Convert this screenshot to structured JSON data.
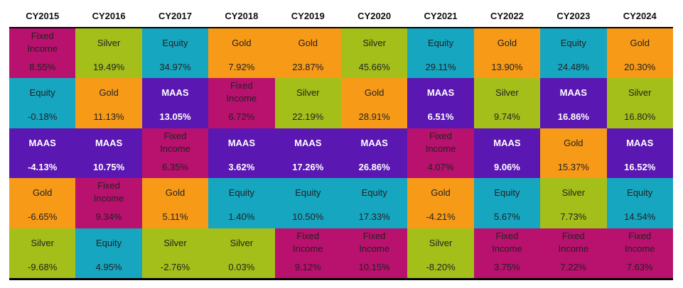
{
  "colors": {
    "Fixed Income": "#B8116E",
    "Silver": "#A5BF1A",
    "Equity": "#17A6C0",
    "Gold": "#F79A18",
    "MAAS": "#5A17B2"
  },
  "chart_data": {
    "type": "table",
    "years": [
      "CY2015",
      "CY2016",
      "CY2017",
      "CY2018",
      "CY2019",
      "CY2020",
      "CY2021",
      "CY2022",
      "CY2023",
      "CY2024"
    ],
    "columns": [
      [
        {
          "asset": "Fixed Income",
          "value": "8.55%"
        },
        {
          "asset": "Equity",
          "value": "-0.18%"
        },
        {
          "asset": "MAAS",
          "value": "-4.13%"
        },
        {
          "asset": "Gold",
          "value": "-6.65%"
        },
        {
          "asset": "Silver",
          "value": "-9.68%"
        }
      ],
      [
        {
          "asset": "Silver",
          "value": "19.49%"
        },
        {
          "asset": "Gold",
          "value": "11.13%"
        },
        {
          "asset": "MAAS",
          "value": "10.75%"
        },
        {
          "asset": "Fixed Income",
          "value": "9.34%"
        },
        {
          "asset": "Equity",
          "value": "4.95%"
        }
      ],
      [
        {
          "asset": "Equity",
          "value": "34.97%"
        },
        {
          "asset": "MAAS",
          "value": "13.05%"
        },
        {
          "asset": "Fixed Income",
          "value": "6.35%"
        },
        {
          "asset": "Gold",
          "value": "5.11%"
        },
        {
          "asset": "Silver",
          "value": "-2.76%"
        }
      ],
      [
        {
          "asset": "Gold",
          "value": "7.92%"
        },
        {
          "asset": "Fixed Income",
          "value": "6.72%"
        },
        {
          "asset": "MAAS",
          "value": "3.62%"
        },
        {
          "asset": "Equity",
          "value": "1.40%"
        },
        {
          "asset": "Silver",
          "value": "0.03%"
        }
      ],
      [
        {
          "asset": "Gold",
          "value": "23.87%"
        },
        {
          "asset": "Silver",
          "value": "22.19%"
        },
        {
          "asset": "MAAS",
          "value": "17.26%"
        },
        {
          "asset": "Equity",
          "value": "10.50%"
        },
        {
          "asset": "Fixed Income",
          "value": "9.12%"
        }
      ],
      [
        {
          "asset": "Silver",
          "value": "45.66%"
        },
        {
          "asset": "Gold",
          "value": "28.91%"
        },
        {
          "asset": "MAAS",
          "value": "26.86%"
        },
        {
          "asset": "Equity",
          "value": "17.33%"
        },
        {
          "asset": "Fixed Income",
          "value": "10.15%"
        }
      ],
      [
        {
          "asset": "Equity",
          "value": "29.11%"
        },
        {
          "asset": "MAAS",
          "value": "6.51%"
        },
        {
          "asset": "Fixed Income",
          "value": "4.07%"
        },
        {
          "asset": "Gold",
          "value": "-4.21%"
        },
        {
          "asset": "Silver",
          "value": "-8.20%"
        }
      ],
      [
        {
          "asset": "Gold",
          "value": "13.90%"
        },
        {
          "asset": "Silver",
          "value": "9.74%"
        },
        {
          "asset": "MAAS",
          "value": "9.06%"
        },
        {
          "asset": "Equity",
          "value": "5.67%"
        },
        {
          "asset": "Fixed Income",
          "value": "3.75%"
        }
      ],
      [
        {
          "asset": "Equity",
          "value": "24.48%"
        },
        {
          "asset": "MAAS",
          "value": "16.86%"
        },
        {
          "asset": "Gold",
          "value": "15.37%"
        },
        {
          "asset": "Silver",
          "value": "7.73%"
        },
        {
          "asset": "Fixed Income",
          "value": "7.22%"
        }
      ],
      [
        {
          "asset": "Gold",
          "value": "20.30%"
        },
        {
          "asset": "Silver",
          "value": "16.80%"
        },
        {
          "asset": "MAAS",
          "value": "16.52%"
        },
        {
          "asset": "Equity",
          "value": "14.54%"
        },
        {
          "asset": "Fixed Income",
          "value": "7.63%"
        }
      ]
    ]
  }
}
